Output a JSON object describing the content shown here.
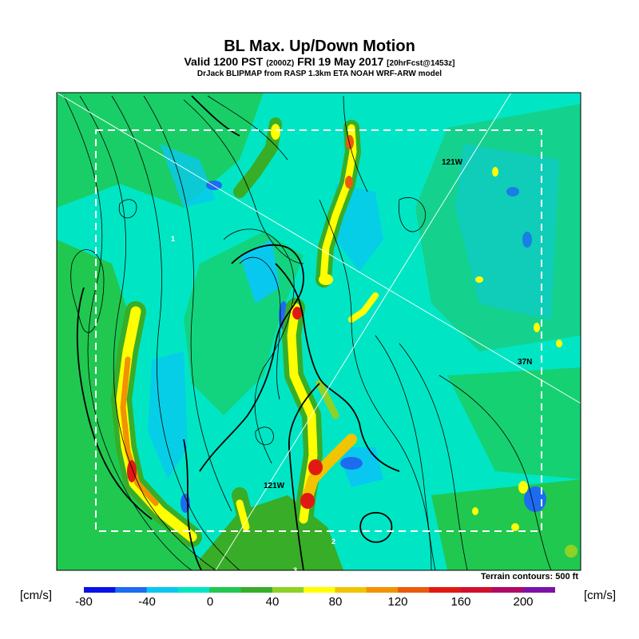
{
  "title": "BL Max. Up/Down Motion",
  "subtitle": {
    "valid_prefix": "Valid 1200 PST",
    "valid_z": "(2000Z)",
    "valid_date": "FRI 19 May 2017",
    "forecast": "[20hrFcst@1453z]"
  },
  "source_line": "DrJack BLIPMAP from RASP 1.3km ETA NOAH WRF-ARW model",
  "map_labels": {
    "lon_top": "121W",
    "lon_bottom": "121W",
    "lat_right": "37N",
    "marker_top_left": "1",
    "marker_bottom": "2",
    "marker_bottom_edge": "3"
  },
  "terrain_note": "Terrain contours: 500 ft",
  "colorbar": {
    "unit_left": "[cm/s]",
    "unit_right": "[cm/s]",
    "tick_labels": [
      "-80",
      "-40",
      "0",
      "40",
      "80",
      "120",
      "160",
      "200"
    ],
    "colors": [
      "#0a10e8",
      "#1d6cf0",
      "#09c8f0",
      "#00e6c4",
      "#20c850",
      "#38ad28",
      "#8ed226",
      "#ffff00",
      "#f2c400",
      "#f29200",
      "#ea5b0c",
      "#e01a12",
      "#d0102e",
      "#b00a66",
      "#7c12a8"
    ]
  }
}
